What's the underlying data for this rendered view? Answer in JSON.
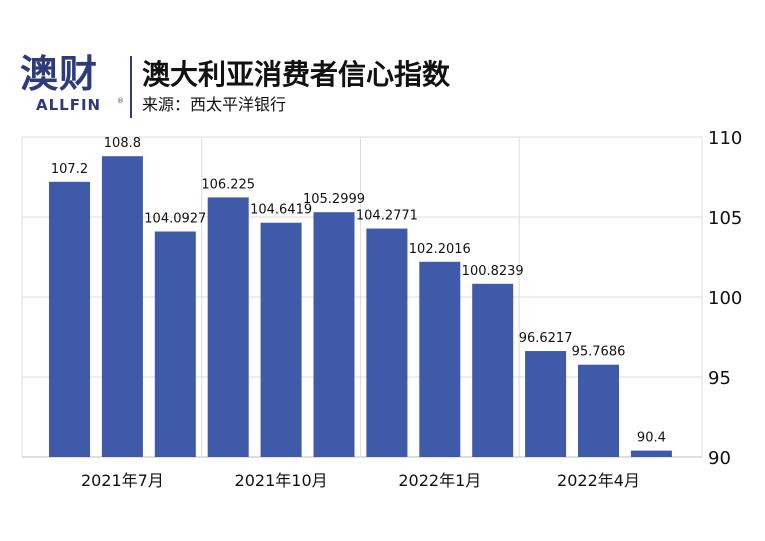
{
  "brand": {
    "logo_text": "澳财",
    "logo_sub": "ALLFIN",
    "logo_mark": "®"
  },
  "header": {
    "title": "澳大利亚消费者信心指数",
    "source": "来源：西太平洋银行"
  },
  "colors": {
    "bar": "#3e5aa8",
    "grid": "#dcdcdc",
    "brand": "#2e3b7a"
  },
  "chart_data": {
    "type": "bar",
    "title": "澳大利亚消费者信心指数",
    "values": [
      107.2,
      108.8,
      104.0927,
      106.225,
      104.6419,
      105.2999,
      104.2771,
      102.2016,
      100.8239,
      96.6217,
      95.7686,
      90.4
    ],
    "value_labels": [
      "107.2",
      "108.8",
      "104.0927",
      "106.225",
      "104.6419",
      "105.2999",
      "104.2771",
      "102.2016",
      "100.8239",
      "96.6217",
      "95.7686",
      "90.4"
    ],
    "x_tick_labels": [
      {
        "index": 1,
        "label": "2021年7月"
      },
      {
        "index": 4,
        "label": "2021年10月"
      },
      {
        "index": 7,
        "label": "2022年1月"
      },
      {
        "index": 10,
        "label": "2022年4月"
      }
    ],
    "y_ticks": [
      90,
      95,
      100,
      105,
      110
    ],
    "ylim": [
      90,
      110
    ],
    "y_axis_side": "right",
    "grid": true,
    "legend": "none"
  }
}
